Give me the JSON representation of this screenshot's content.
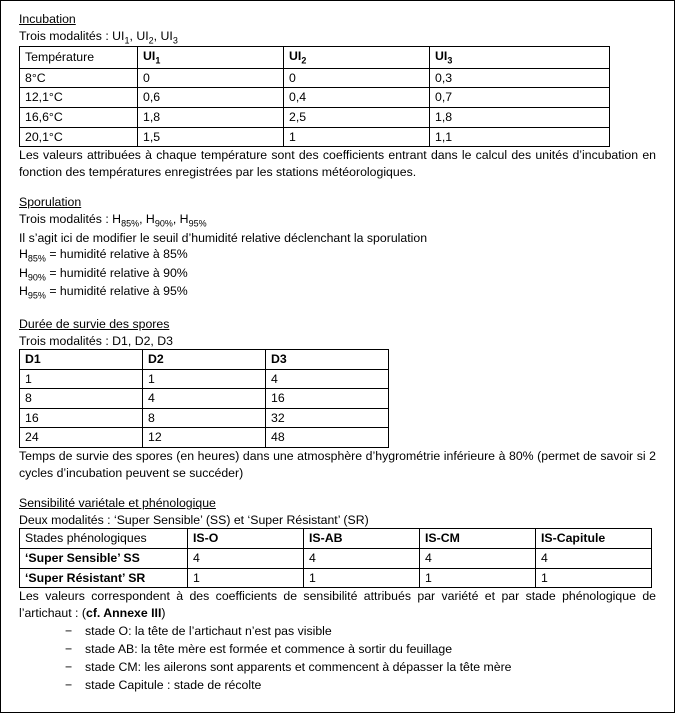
{
  "sections": {
    "incubation": {
      "title": "Incubation",
      "subtitle_prefix": "Trois modalités : ",
      "modal_labels": [
        "UI",
        "UI",
        "UI"
      ],
      "modal_subs": [
        "1",
        "2",
        "3"
      ],
      "table": {
        "col_header": "Température",
        "columns": [
          {
            "label": "UI",
            "sub": "1"
          },
          {
            "label": "UI",
            "sub": "2"
          },
          {
            "label": "UI",
            "sub": "3"
          }
        ],
        "rows": [
          {
            "temp": "8°C",
            "vals": [
              "0",
              "0",
              "0,3"
            ]
          },
          {
            "temp": "12,1°C",
            "vals": [
              "0,6",
              "0,4",
              "0,7"
            ]
          },
          {
            "temp": "16,6°C",
            "vals": [
              "1,8",
              "2,5",
              "1,8"
            ]
          },
          {
            "temp": "20,1°C",
            "vals": [
              "1,5",
              "1",
              "1,1"
            ]
          }
        ]
      },
      "footer": "Les valeurs attribuées à chaque température sont des coefficients entrant dans le calcul des unités d’incubation en fonction des températures enregistrées par les stations météorologiques."
    },
    "sporulation": {
      "title": "Sporulation",
      "subtitle_prefix": "Trois modalités : ",
      "modal_labels": [
        "H",
        "H",
        "H"
      ],
      "modal_subs": [
        "85%",
        "90%",
        "95%"
      ],
      "line1": "Il s’agit ici de modifier le seuil d’humidité relative déclenchant la sporulation",
      "defs": [
        {
          "sym": "H",
          "sub": "85%",
          "desc": "humidité relative à 85%"
        },
        {
          "sym": "H",
          "sub": "90%",
          "desc": "humidité relative à 90%"
        },
        {
          "sym": "H",
          "sub": "95%",
          "desc": "humidité relative à 95%"
        }
      ]
    },
    "spores": {
      "title": "Durée de survie des spores",
      "subtitle": "Trois modalités : D1, D2, D3",
      "table": {
        "headers": [
          "D1",
          "D2",
          "D3"
        ],
        "rows": [
          [
            "1",
            "1",
            "4"
          ],
          [
            "8",
            "4",
            "16"
          ],
          [
            "16",
            "8",
            "32"
          ],
          [
            "24",
            "12",
            "48"
          ]
        ]
      },
      "footer": "Temps de survie des spores (en heures) dans une atmosphère d’hygrométrie inférieure à 80% (permet de savoir si 2 cycles d’incubation peuvent se succéder)"
    },
    "sensibilite": {
      "title": "Sensibilité variétale et phénologique",
      "subtitle": "Deux modalités : ‘Super Sensible’ (SS) et ‘Super Résistant’ (SR)",
      "table": {
        "row_header": "Stades phénologiques",
        "col_headers": [
          "IS-O",
          "IS-AB",
          "IS-CM",
          "IS-Capitule"
        ],
        "rows": [
          {
            "label": "‘Super Sensible’ SS",
            "vals": [
              "4",
              "4",
              "4",
              "4"
            ]
          },
          {
            "label": "‘Super Résistant’ SR",
            "vals": [
              "1",
              "1",
              "1",
              "1"
            ]
          }
        ]
      },
      "footer_prefix": "Les valeurs correspondent à des coefficients de sensibilité attribués par variété et par stade phénologique de l’artichaut : (",
      "footer_bold": "cf. Annexe III",
      "footer_suffix": ")",
      "bullets": [
        "stade O: la tête de l’artichaut n’est pas visible",
        "stade AB: la tête mère est formée et commence à sortir du feuillage",
        "stade CM: les ailerons sont apparents et commencent à dépasser la tête mère",
        "stade Capitule : stade de récolte"
      ]
    }
  }
}
